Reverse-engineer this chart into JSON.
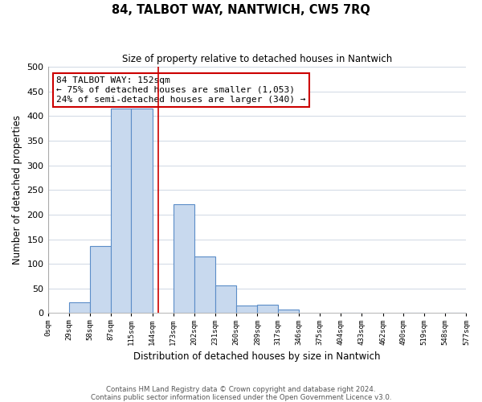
{
  "title": "84, TALBOT WAY, NANTWICH, CW5 7RQ",
  "subtitle": "Size of property relative to detached houses in Nantwich",
  "xlabel": "Distribution of detached houses by size in Nantwich",
  "ylabel": "Number of detached properties",
  "bar_color": "#c8d9ee",
  "bar_edge_color": "#5b8dc8",
  "background_color": "#ffffff",
  "grid_color": "#d0d8e4",
  "bin_edges": [
    0,
    29,
    58,
    87,
    115,
    144,
    173,
    202,
    231,
    260,
    289,
    317,
    346,
    375,
    404,
    433,
    462,
    490,
    519,
    548,
    577
  ],
  "bin_labels": [
    "0sqm",
    "29sqm",
    "58sqm",
    "87sqm",
    "115sqm",
    "144sqm",
    "173sqm",
    "202sqm",
    "231sqm",
    "260sqm",
    "289sqm",
    "317sqm",
    "346sqm",
    "375sqm",
    "404sqm",
    "433sqm",
    "462sqm",
    "490sqm",
    "519sqm",
    "548sqm",
    "577sqm"
  ],
  "bar_heights": [
    0,
    22,
    137,
    415,
    415,
    0,
    221,
    115,
    57,
    15,
    17,
    8,
    0,
    0,
    1,
    0,
    0,
    1,
    0,
    1
  ],
  "property_line_x": 152,
  "property_line_color": "#cc0000",
  "annotation_line1": "84 TALBOT WAY: 152sqm",
  "annotation_line2": "← 75% of detached houses are smaller (1,053)",
  "annotation_line3": "24% of semi-detached houses are larger (340) →",
  "annotation_box_color": "#ffffff",
  "annotation_box_edge": "#cc0000",
  "ylim": [
    0,
    500
  ],
  "yticks": [
    0,
    50,
    100,
    150,
    200,
    250,
    300,
    350,
    400,
    450,
    500
  ],
  "footer_line1": "Contains HM Land Registry data © Crown copyright and database right 2024.",
  "footer_line2": "Contains public sector information licensed under the Open Government Licence v3.0."
}
